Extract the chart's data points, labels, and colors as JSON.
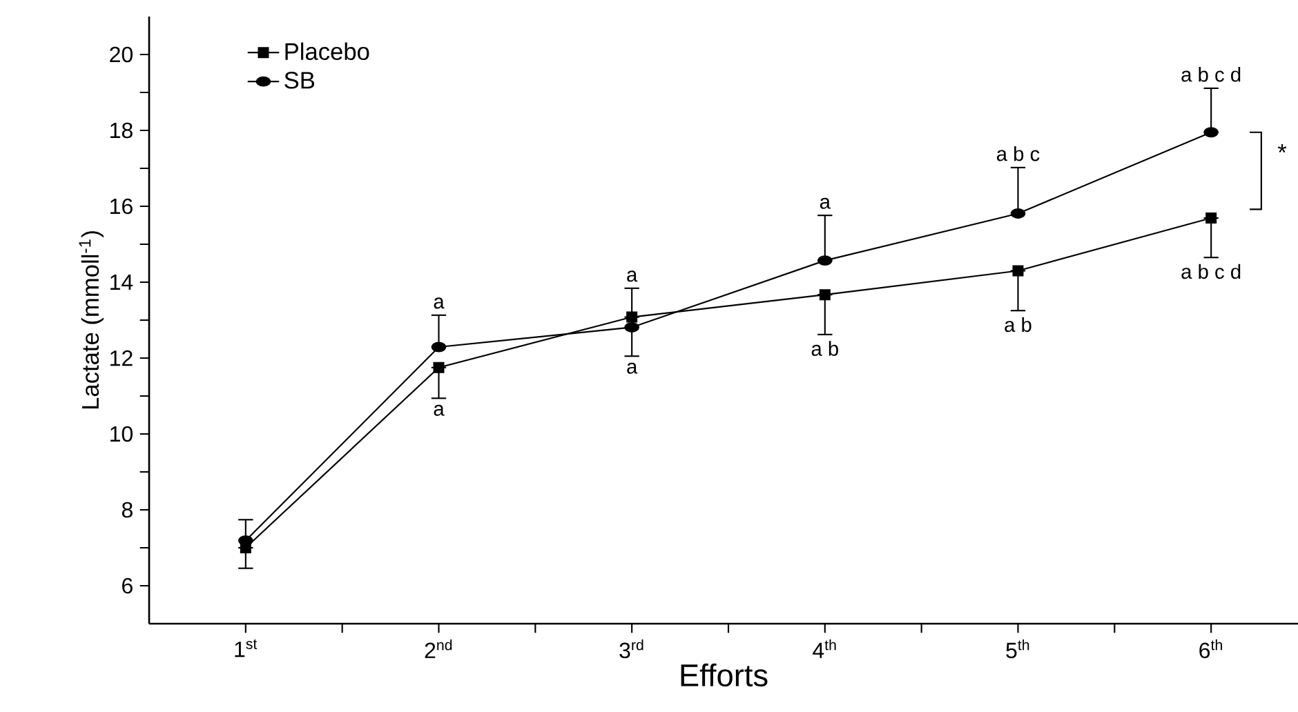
{
  "chart_data": {
    "type": "line",
    "xlabel": "Efforts",
    "ylabel": "Lactate (mmoll$^{-1}$)",
    "categories": [
      "1$^{st}$",
      "2$^{nd}$",
      "3$^{rd}$",
      "4$^{th}$",
      "5$^{th}$",
      "6$^{th}$"
    ],
    "series": [
      {
        "name": "Placebo",
        "color": "#000000",
        "marker": "square",
        "values": [
          7.0,
          11.75,
          13.08,
          13.67,
          14.3,
          15.69
        ],
        "errors": [
          [
            6.46,
            7.0
          ],
          [
            10.94,
            11.75
          ],
          [
            12.05,
            13.08
          ],
          [
            12.62,
            13.67
          ],
          [
            13.25,
            14.3
          ],
          [
            14.65,
            15.69
          ]
        ]
      },
      {
        "name": "SB",
        "color": "#000000",
        "marker": "circle",
        "values": [
          7.19,
          12.29,
          12.81,
          14.57,
          15.81,
          17.95
        ],
        "errors": [
          [
            7.19,
            7.74
          ],
          [
            12.29,
            13.13
          ],
          [
            12.81,
            13.84
          ],
          [
            14.57,
            15.76
          ],
          [
            15.81,
            17.02
          ],
          [
            17.95,
            19.11
          ]
        ]
      }
    ],
    "ylim": [
      5,
      21
    ],
    "yticks": [
      6,
      8,
      10,
      12,
      14,
      16,
      18,
      20
    ],
    "legend": "top left",
    "line_style": "solid",
    "grid": false,
    "annotations": [
      "a",
      "a",
      "a",
      "a",
      "a",
      "a b",
      "a b c",
      "a b",
      "a b c d",
      "a b c d",
      "*"
    ]
  }
}
